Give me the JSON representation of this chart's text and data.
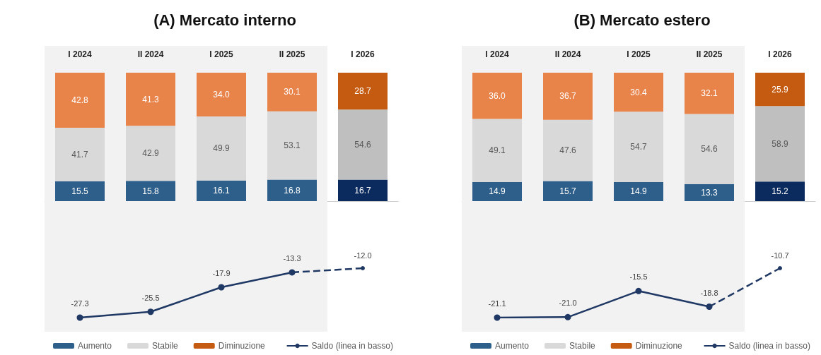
{
  "chart_data": [
    {
      "type": "bar",
      "title": "(A) Mercato interno",
      "stacked": true,
      "legend": "bottom",
      "categories": [
        "I 2024",
        "II 2024",
        "I 2025",
        "II 2025",
        "I 2026"
      ],
      "ylim": [
        0,
        100
      ],
      "bands": [
        {
          "axis": "x",
          "from": "I 2024",
          "to": "II 2025",
          "color": "#f2f2f2"
        }
      ],
      "series": [
        {
          "name": "Aumento",
          "color": "#2e5f8a",
          "colors": [
            "#2e5f8a",
            "#2e5f8a",
            "#2e5f8a",
            "#2e5f8a",
            "#0b2a5e"
          ],
          "values": [
            15.5,
            15.8,
            16.1,
            16.8,
            16.7
          ],
          "value_labels": [
            "15.5",
            "15.8",
            "16.1",
            "16.8",
            "16.7"
          ]
        },
        {
          "name": "Stabile",
          "color": "#d9d9d9",
          "colors": [
            "#d9d9d9",
            "#d9d9d9",
            "#d9d9d9",
            "#d9d9d9",
            "#bfbfbf"
          ],
          "values": [
            41.7,
            42.9,
            49.9,
            53.1,
            54.6
          ],
          "value_labels": [
            "41.7",
            "42.9",
            "49.9",
            "53.1",
            "54.6"
          ]
        },
        {
          "name": "Diminuzione",
          "color": "#c55a11",
          "colors": [
            "#e8834a",
            "#e8834a",
            "#e8834a",
            "#e8834a",
            "#c55a11"
          ],
          "values": [
            42.8,
            41.3,
            34.0,
            30.1,
            28.7
          ],
          "value_labels": [
            "42.8",
            "41.3",
            "34.0",
            "30.1",
            "28.7"
          ]
        }
      ]
    },
    {
      "type": "line",
      "legend": "bottom",
      "marker": "circle",
      "tick_labels": false,
      "categories": [
        "I 2024",
        "II 2024",
        "I 2025",
        "II 2025",
        "I 2026"
      ],
      "bands": [
        {
          "axis": "x",
          "from": "I 2024",
          "to": "II 2025",
          "color": "#f2f2f2"
        }
      ],
      "series": [
        {
          "name": "Saldo (linea in basso)",
          "line_style": "solid",
          "color": "#1f3864",
          "values": [
            -27.3,
            -25.5,
            -17.9,
            -13.3,
            null
          ],
          "value_labels": [
            "-27.3",
            "-25.5",
            "-17.9",
            "-13.3",
            null
          ]
        },
        {
          "line_style": "dashed",
          "color": "#1f3864",
          "values": [
            null,
            null,
            null,
            -13.3,
            -12.0
          ],
          "value_labels": [
            null,
            null,
            null,
            null,
            "-12.0"
          ]
        }
      ]
    },
    {
      "type": "bar",
      "title": "(B) Mercato estero",
      "stacked": true,
      "legend": "bottom",
      "categories": [
        "I 2024",
        "II 2024",
        "I 2025",
        "II 2025",
        "I 2026"
      ],
      "ylim": [
        0,
        100
      ],
      "bands": [
        {
          "axis": "x",
          "from": "I 2024",
          "to": "II 2025",
          "color": "#f2f2f2"
        }
      ],
      "series": [
        {
          "name": "Aumento",
          "color": "#2e5f8a",
          "colors": [
            "#2e5f8a",
            "#2e5f8a",
            "#2e5f8a",
            "#2e5f8a",
            "#0b2a5e"
          ],
          "values": [
            14.9,
            15.7,
            14.9,
            13.3,
            15.2
          ],
          "value_labels": [
            "14.9",
            "15.7",
            "14.9",
            "13.3",
            "15.2"
          ]
        },
        {
          "name": "Stabile",
          "color": "#d9d9d9",
          "colors": [
            "#d9d9d9",
            "#d9d9d9",
            "#d9d9d9",
            "#d9d9d9",
            "#bfbfbf"
          ],
          "values": [
            49.1,
            47.6,
            54.7,
            54.6,
            58.9
          ],
          "value_labels": [
            "49.1",
            "47.6",
            "54.7",
            "54.6",
            "58.9"
          ]
        },
        {
          "name": "Diminuzione",
          "color": "#c55a11",
          "colors": [
            "#e8834a",
            "#e8834a",
            "#e8834a",
            "#e8834a",
            "#c55a11"
          ],
          "values": [
            36.0,
            36.7,
            30.4,
            32.1,
            25.9
          ],
          "value_labels": [
            "36.0",
            "36.7",
            "30.4",
            "32.1",
            "25.9"
          ]
        }
      ]
    },
    {
      "type": "line",
      "legend": "bottom",
      "marker": "circle",
      "tick_labels": false,
      "categories": [
        "I 2024",
        "II 2024",
        "I 2025",
        "II 2025",
        "I 2026"
      ],
      "bands": [
        {
          "axis": "x",
          "from": "I 2024",
          "to": "II 2025",
          "color": "#f2f2f2"
        }
      ],
      "series": [
        {
          "name": "Saldo (linea in basso)",
          "line_style": "solid",
          "color": "#1f3864",
          "values": [
            -21.1,
            -21.0,
            -15.5,
            -18.8,
            null
          ],
          "value_labels": [
            "-21.1",
            "-21.0",
            "-15.5",
            "-18.8",
            null
          ]
        },
        {
          "line_style": "dashed",
          "color": "#1f3864",
          "values": [
            null,
            null,
            null,
            -18.8,
            -10.7
          ],
          "value_labels": [
            null,
            null,
            null,
            null,
            "-10.7"
          ]
        }
      ]
    }
  ]
}
